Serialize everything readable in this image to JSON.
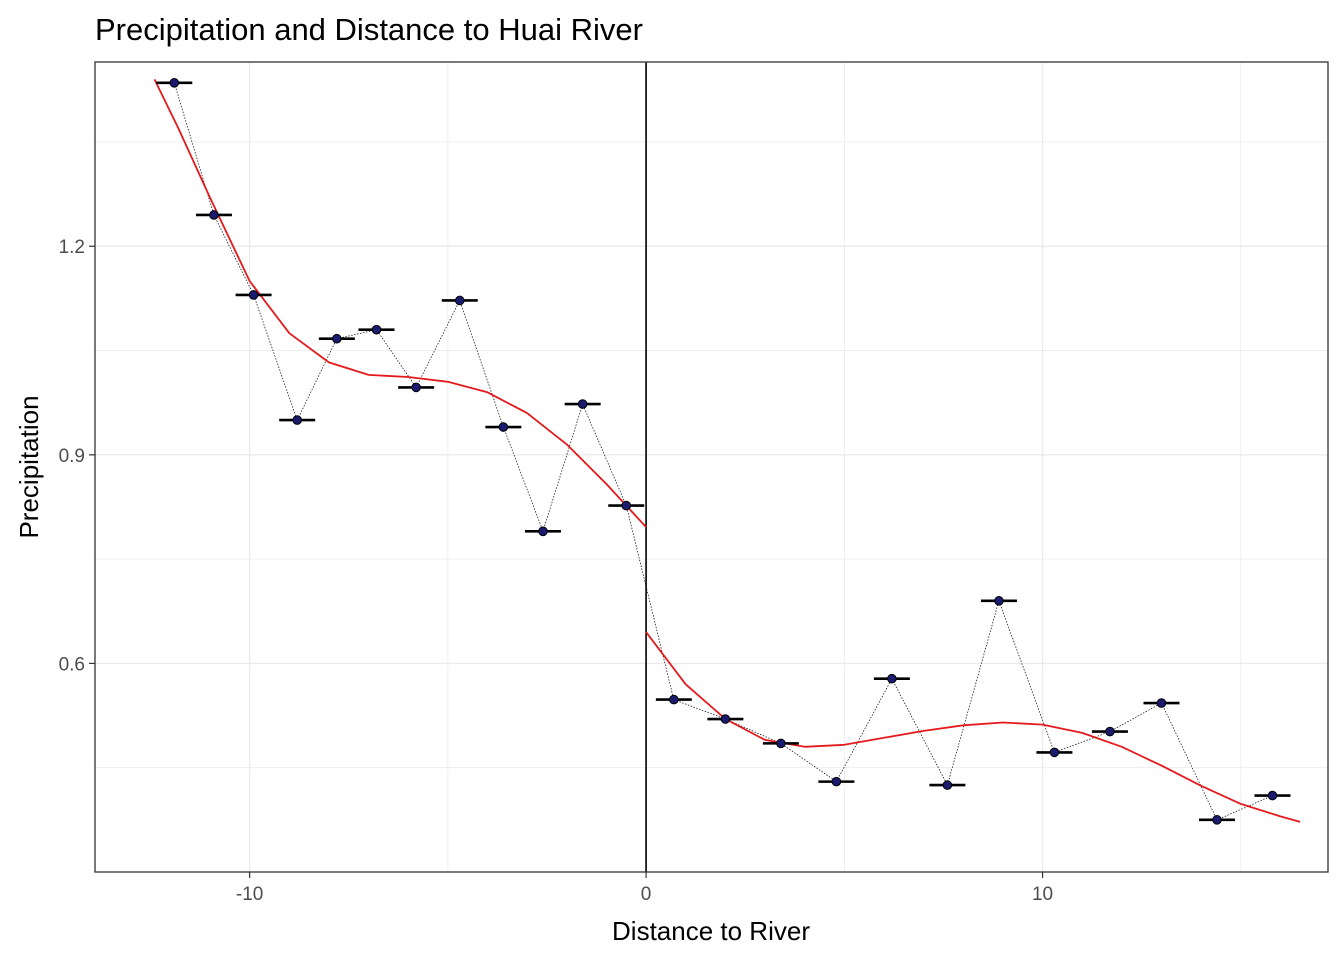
{
  "chart_data": {
    "type": "scatter",
    "title": "Precipitation and Distance to Huai River",
    "xlabel": "Distance to River",
    "ylabel": "Precipitation",
    "xlim": [
      -13.9,
      17.2
    ],
    "ylim": [
      0.3,
      1.465
    ],
    "x_ticks": [
      -10,
      0,
      10
    ],
    "y_ticks": [
      0.6,
      0.9,
      1.2
    ],
    "x_tick_labels": [
      "-10",
      "0",
      "10"
    ],
    "y_tick_labels": [
      "0.6",
      "0.9",
      "1.2"
    ],
    "grid": true,
    "cutoff_x": 0,
    "points": [
      {
        "x": -11.9,
        "y": 1.435
      },
      {
        "x": -10.9,
        "y": 1.245
      },
      {
        "x": -9.9,
        "y": 1.13
      },
      {
        "x": -8.8,
        "y": 0.95
      },
      {
        "x": -7.8,
        "y": 1.067
      },
      {
        "x": -6.8,
        "y": 1.08
      },
      {
        "x": -5.8,
        "y": 0.997
      },
      {
        "x": -4.7,
        "y": 1.122
      },
      {
        "x": -3.6,
        "y": 0.94
      },
      {
        "x": -2.6,
        "y": 0.79
      },
      {
        "x": -1.6,
        "y": 0.973
      },
      {
        "x": -0.5,
        "y": 0.827
      },
      {
        "x": 0.7,
        "y": 0.548
      },
      {
        "x": 2.0,
        "y": 0.52
      },
      {
        "x": 3.4,
        "y": 0.485
      },
      {
        "x": 4.8,
        "y": 0.43
      },
      {
        "x": 6.2,
        "y": 0.578
      },
      {
        "x": 7.6,
        "y": 0.425
      },
      {
        "x": 8.9,
        "y": 0.69
      },
      {
        "x": 10.3,
        "y": 0.472
      },
      {
        "x": 11.7,
        "y": 0.502
      },
      {
        "x": 13.0,
        "y": 0.543
      },
      {
        "x": 14.4,
        "y": 0.375
      },
      {
        "x": 15.8,
        "y": 0.41
      }
    ],
    "fit_left": [
      {
        "x": -12.4,
        "y": 1.44
      },
      {
        "x": -11.8,
        "y": 1.37
      },
      {
        "x": -11.0,
        "y": 1.27
      },
      {
        "x": -10.0,
        "y": 1.15
      },
      {
        "x": -9.0,
        "y": 1.075
      },
      {
        "x": -8.0,
        "y": 1.033
      },
      {
        "x": -7.0,
        "y": 1.015
      },
      {
        "x": -6.0,
        "y": 1.012
      },
      {
        "x": -5.0,
        "y": 1.005
      },
      {
        "x": -4.0,
        "y": 0.99
      },
      {
        "x": -3.0,
        "y": 0.96
      },
      {
        "x": -2.0,
        "y": 0.915
      },
      {
        "x": -1.0,
        "y": 0.858
      },
      {
        "x": 0.0,
        "y": 0.796
      }
    ],
    "fit_right": [
      {
        "x": 0.0,
        "y": 0.645
      },
      {
        "x": 1.0,
        "y": 0.57
      },
      {
        "x": 2.0,
        "y": 0.52
      },
      {
        "x": 3.0,
        "y": 0.49
      },
      {
        "x": 4.0,
        "y": 0.48
      },
      {
        "x": 5.0,
        "y": 0.483
      },
      {
        "x": 6.0,
        "y": 0.493
      },
      {
        "x": 7.0,
        "y": 0.503
      },
      {
        "x": 8.0,
        "y": 0.511
      },
      {
        "x": 9.0,
        "y": 0.515
      },
      {
        "x": 10.0,
        "y": 0.512
      },
      {
        "x": 11.0,
        "y": 0.5
      },
      {
        "x": 12.0,
        "y": 0.48
      },
      {
        "x": 13.0,
        "y": 0.453
      },
      {
        "x": 14.0,
        "y": 0.424
      },
      {
        "x": 15.0,
        "y": 0.398
      },
      {
        "x": 16.0,
        "y": 0.38
      },
      {
        "x": 16.5,
        "y": 0.372
      }
    ],
    "colors": {
      "fit": "#e41a1c",
      "point_fill": "#1a1a6e",
      "point_stroke": "#000000",
      "connect": "#000000",
      "grid": "#ebebeb",
      "cutoff": "#000000"
    }
  }
}
